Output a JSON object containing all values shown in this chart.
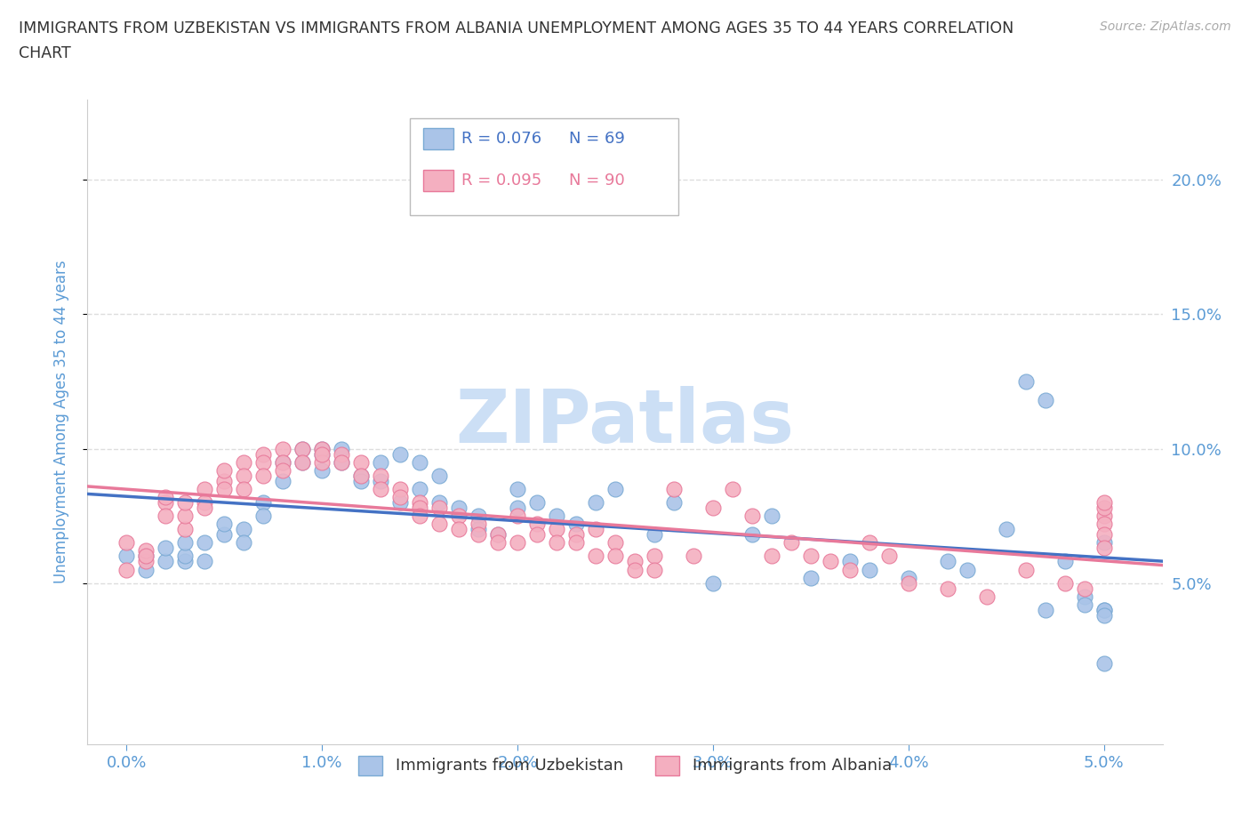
{
  "title_line1": "IMMIGRANTS FROM UZBEKISTAN VS IMMIGRANTS FROM ALBANIA UNEMPLOYMENT AMONG AGES 35 TO 44 YEARS CORRELATION",
  "title_line2": "CHART",
  "source": "Source: ZipAtlas.com",
  "ylabel": "Unemployment Among Ages 35 to 44 years",
  "series": [
    {
      "label": "Immigrants from Uzbekistan",
      "R": 0.076,
      "N": 69,
      "color": "#aac4e8",
      "edge_color": "#7aaad4",
      "trend_color": "#4472c4",
      "x": [
        0.0,
        0.001,
        0.001,
        0.002,
        0.002,
        0.003,
        0.003,
        0.003,
        0.004,
        0.004,
        0.005,
        0.005,
        0.006,
        0.006,
        0.007,
        0.007,
        0.008,
        0.008,
        0.009,
        0.009,
        0.01,
        0.01,
        0.01,
        0.011,
        0.011,
        0.012,
        0.012,
        0.013,
        0.013,
        0.014,
        0.014,
        0.015,
        0.015,
        0.016,
        0.016,
        0.017,
        0.018,
        0.018,
        0.019,
        0.02,
        0.02,
        0.021,
        0.022,
        0.023,
        0.024,
        0.025,
        0.027,
        0.028,
        0.03,
        0.032,
        0.033,
        0.035,
        0.037,
        0.038,
        0.04,
        0.042,
        0.043,
        0.045,
        0.046,
        0.047,
        0.047,
        0.048,
        0.049,
        0.049,
        0.05,
        0.05,
        0.05,
        0.05,
        0.05
      ],
      "y": [
        0.06,
        0.06,
        0.055,
        0.058,
        0.063,
        0.058,
        0.06,
        0.065,
        0.058,
        0.065,
        0.068,
        0.072,
        0.07,
        0.065,
        0.08,
        0.075,
        0.095,
        0.088,
        0.1,
        0.095,
        0.1,
        0.098,
        0.092,
        0.095,
        0.1,
        0.09,
        0.088,
        0.095,
        0.088,
        0.098,
        0.08,
        0.095,
        0.085,
        0.08,
        0.09,
        0.078,
        0.075,
        0.07,
        0.068,
        0.085,
        0.078,
        0.08,
        0.075,
        0.072,
        0.08,
        0.085,
        0.068,
        0.08,
        0.05,
        0.068,
        0.075,
        0.052,
        0.058,
        0.055,
        0.052,
        0.058,
        0.055,
        0.07,
        0.125,
        0.118,
        0.04,
        0.058,
        0.045,
        0.042,
        0.065,
        0.04,
        0.04,
        0.038,
        0.02
      ]
    },
    {
      "label": "Immigrants from Albania",
      "R": 0.095,
      "N": 90,
      "color": "#f4afc0",
      "edge_color": "#e8799a",
      "trend_color": "#e8799a",
      "x": [
        0.0,
        0.0,
        0.001,
        0.001,
        0.001,
        0.002,
        0.002,
        0.002,
        0.003,
        0.003,
        0.003,
        0.004,
        0.004,
        0.004,
        0.005,
        0.005,
        0.005,
        0.006,
        0.006,
        0.006,
        0.007,
        0.007,
        0.007,
        0.008,
        0.008,
        0.008,
        0.009,
        0.009,
        0.01,
        0.01,
        0.01,
        0.011,
        0.011,
        0.012,
        0.012,
        0.013,
        0.013,
        0.014,
        0.014,
        0.015,
        0.015,
        0.015,
        0.016,
        0.016,
        0.017,
        0.017,
        0.018,
        0.018,
        0.019,
        0.019,
        0.02,
        0.02,
        0.021,
        0.021,
        0.022,
        0.022,
        0.023,
        0.023,
        0.024,
        0.024,
        0.025,
        0.025,
        0.026,
        0.026,
        0.027,
        0.027,
        0.028,
        0.029,
        0.03,
        0.031,
        0.032,
        0.033,
        0.034,
        0.035,
        0.036,
        0.037,
        0.038,
        0.039,
        0.04,
        0.042,
        0.044,
        0.046,
        0.048,
        0.049,
        0.05,
        0.05,
        0.05,
        0.05,
        0.05,
        0.05
      ],
      "y": [
        0.055,
        0.065,
        0.058,
        0.062,
        0.06,
        0.08,
        0.075,
        0.082,
        0.07,
        0.075,
        0.08,
        0.085,
        0.08,
        0.078,
        0.088,
        0.092,
        0.085,
        0.095,
        0.09,
        0.085,
        0.098,
        0.095,
        0.09,
        0.1,
        0.095,
        0.092,
        0.1,
        0.095,
        0.1,
        0.095,
        0.098,
        0.098,
        0.095,
        0.095,
        0.09,
        0.09,
        0.085,
        0.085,
        0.082,
        0.08,
        0.078,
        0.075,
        0.078,
        0.072,
        0.075,
        0.07,
        0.072,
        0.068,
        0.068,
        0.065,
        0.075,
        0.065,
        0.072,
        0.068,
        0.07,
        0.065,
        0.068,
        0.065,
        0.07,
        0.06,
        0.065,
        0.06,
        0.058,
        0.055,
        0.06,
        0.055,
        0.085,
        0.06,
        0.078,
        0.085,
        0.075,
        0.06,
        0.065,
        0.06,
        0.058,
        0.055,
        0.065,
        0.06,
        0.05,
        0.048,
        0.045,
        0.055,
        0.05,
        0.048,
        0.075,
        0.078,
        0.072,
        0.068,
        0.063,
        0.08
      ]
    }
  ],
  "xlim": [
    -0.002,
    0.053
  ],
  "ylim": [
    -0.01,
    0.23
  ],
  "xticks": [
    0.0,
    0.01,
    0.02,
    0.03,
    0.04,
    0.05
  ],
  "yticks_right": [
    0.05,
    0.1,
    0.15,
    0.2
  ],
  "ytick_labels_right": [
    "5.0%",
    "10.0%",
    "15.0%",
    "20.0%"
  ],
  "xtick_labels": [
    "0.0%",
    "1.0%",
    "2.0%",
    "3.0%",
    "4.0%",
    "5.0%"
  ],
  "background_color": "#ffffff",
  "grid_color": "#dddddd",
  "title_color": "#333333",
  "axis_label_color": "#5b9bd5",
  "watermark": "ZIPatlas",
  "watermark_color": "#ccdff5"
}
